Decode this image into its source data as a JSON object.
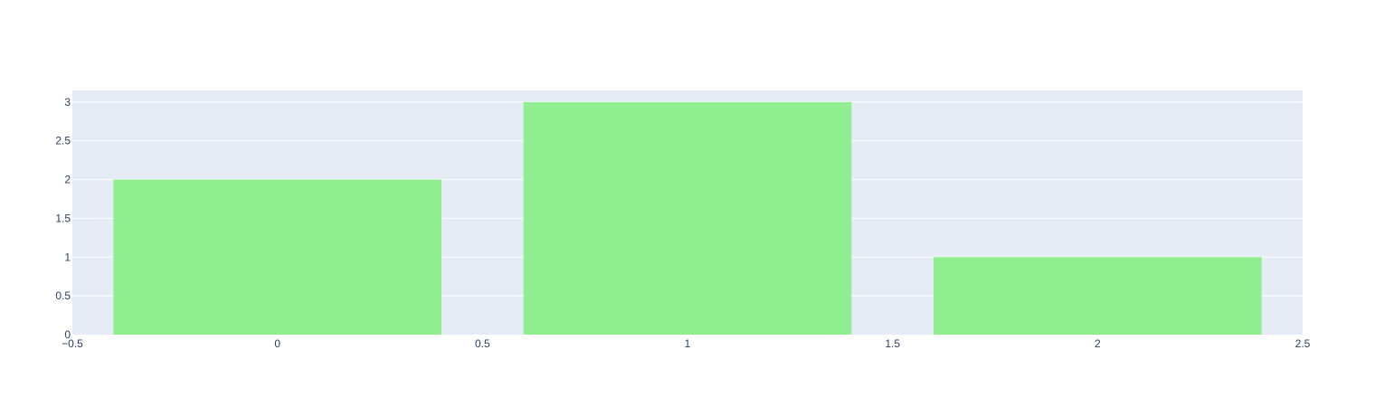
{
  "chart_data": {
    "type": "bar",
    "title": "",
    "xlabel": "",
    "ylabel": "",
    "x": [
      0,
      1,
      2
    ],
    "values": [
      2,
      3,
      1
    ],
    "bar_width": 0.8,
    "bar_color": "#90ee90",
    "xlim": [
      -0.5,
      2.5
    ],
    "ylim": [
      0,
      3.15
    ],
    "x_ticks": [
      -0.5,
      0,
      0.5,
      1,
      1.5,
      2,
      2.5
    ],
    "x_tick_labels": [
      "−0.5",
      "0",
      "0.5",
      "1",
      "1.5",
      "2",
      "2.5"
    ],
    "y_ticks": [
      0,
      0.5,
      1,
      1.5,
      2,
      2.5,
      3
    ],
    "y_tick_labels": [
      "0",
      "0.5",
      "1",
      "1.5",
      "2",
      "2.5",
      "3"
    ],
    "grid": true,
    "plot_bg": "#e5ecf6",
    "grid_color": "#ffffff",
    "legend": "none"
  }
}
